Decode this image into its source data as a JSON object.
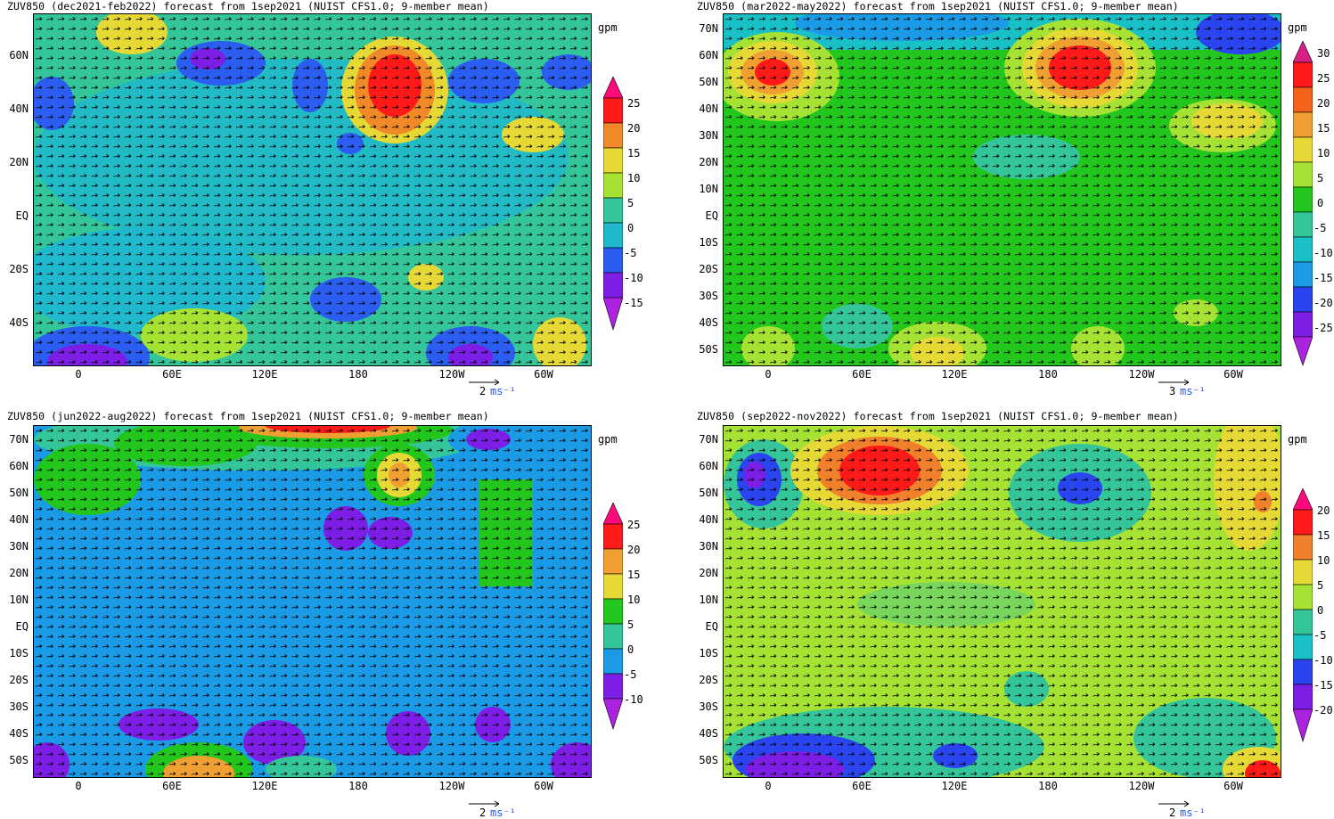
{
  "panels": [
    {
      "title": "ZUV850 (dec2021-feb2022) forecast from 1sep2021 (NUIST CFS1.0; 9-member mean)",
      "unit": "gpm",
      "lat_labels": [
        "60N",
        "40N",
        "20N",
        "EQ",
        "20S",
        "40S"
      ],
      "lon_labels": [
        "0",
        "60E",
        "120E",
        "180",
        "120W",
        "60W"
      ],
      "colorbar_labels": [
        "25",
        "20",
        "15",
        "10",
        "5",
        "0",
        "-5",
        "-10",
        "-15"
      ],
      "colorbar_colors": [
        "#ff0a7a",
        "#ff1a1a",
        "#f08a28",
        "#e6d936",
        "#a6e234",
        "#35c59a",
        "#1fb8cd",
        "#2a5df0",
        "#7d1ee6",
        "#ab22e0"
      ],
      "ref_vector": {
        "value": "2",
        "unit": "ms⁻¹"
      }
    },
    {
      "title": "ZUV850 (mar2022-may2022) forecast from 1sep2021 (NUIST CFS1.0; 9-member mean)",
      "unit": "gpm",
      "lat_labels": [
        "70N",
        "60N",
        "50N",
        "40N",
        "30N",
        "20N",
        "10N",
        "EQ",
        "10S",
        "20S",
        "30S",
        "40S",
        "50S"
      ],
      "lon_labels": [
        "0",
        "60E",
        "120E",
        "180",
        "120W",
        "60W"
      ],
      "colorbar_labels": [
        "30",
        "25",
        "20",
        "15",
        "10",
        "5",
        "0",
        "-5",
        "-10",
        "-15",
        "-20",
        "-25"
      ],
      "colorbar_colors": [
        "#d81f86",
        "#ff1a1a",
        "#f3631c",
        "#f0a032",
        "#e6d936",
        "#a6e234",
        "#22c61c",
        "#35c59a",
        "#19c1c7",
        "#1b9ae6",
        "#2a45f0",
        "#7d1ee6",
        "#ab22e0"
      ],
      "ref_vector": {
        "value": "3",
        "unit": "ms⁻¹"
      }
    },
    {
      "title": "ZUV850 (jun2022-aug2022) forecast from 1sep2021 (NUIST CFS1.0; 9-member mean)",
      "unit": "gpm",
      "lat_labels": [
        "70N",
        "60N",
        "50N",
        "40N",
        "30N",
        "20N",
        "10N",
        "EQ",
        "10S",
        "20S",
        "30S",
        "40S",
        "50S"
      ],
      "lon_labels": [
        "0",
        "60E",
        "120E",
        "180",
        "120W",
        "60W"
      ],
      "colorbar_labels": [
        "25",
        "20",
        "15",
        "10",
        "5",
        "0",
        "-5",
        "-10"
      ],
      "colorbar_colors": [
        "#ff0a7a",
        "#ff1a1a",
        "#f0a032",
        "#e6d936",
        "#22c61c",
        "#35c59a",
        "#1b9ae6",
        "#7d1ee6",
        "#ab22e0"
      ],
      "ref_vector": {
        "value": "2",
        "unit": "ms⁻¹"
      }
    },
    {
      "title": "ZUV850 (sep2022-nov2022) forecast from 1sep2021 (NUIST CFS1.0; 9-member mean)",
      "unit": "gpm",
      "lat_labels": [
        "70N",
        "60N",
        "50N",
        "40N",
        "30N",
        "20N",
        "10N",
        "EQ",
        "10S",
        "20S",
        "30S",
        "40S",
        "50S"
      ],
      "lon_labels": [
        "0",
        "60E",
        "120E",
        "180",
        "120W",
        "60W"
      ],
      "colorbar_labels": [
        "20",
        "15",
        "10",
        "5",
        "0",
        "-5",
        "-10",
        "-15",
        "-20"
      ],
      "colorbar_colors": [
        "#ff0a7a",
        "#ff1a1a",
        "#f0802c",
        "#e6d936",
        "#a6e234",
        "#35c59a",
        "#19c1c7",
        "#2a45f0",
        "#7d1ee6",
        "#ab22e0"
      ],
      "ref_vector": {
        "value": "2",
        "unit": "ms⁻¹"
      }
    }
  ]
}
